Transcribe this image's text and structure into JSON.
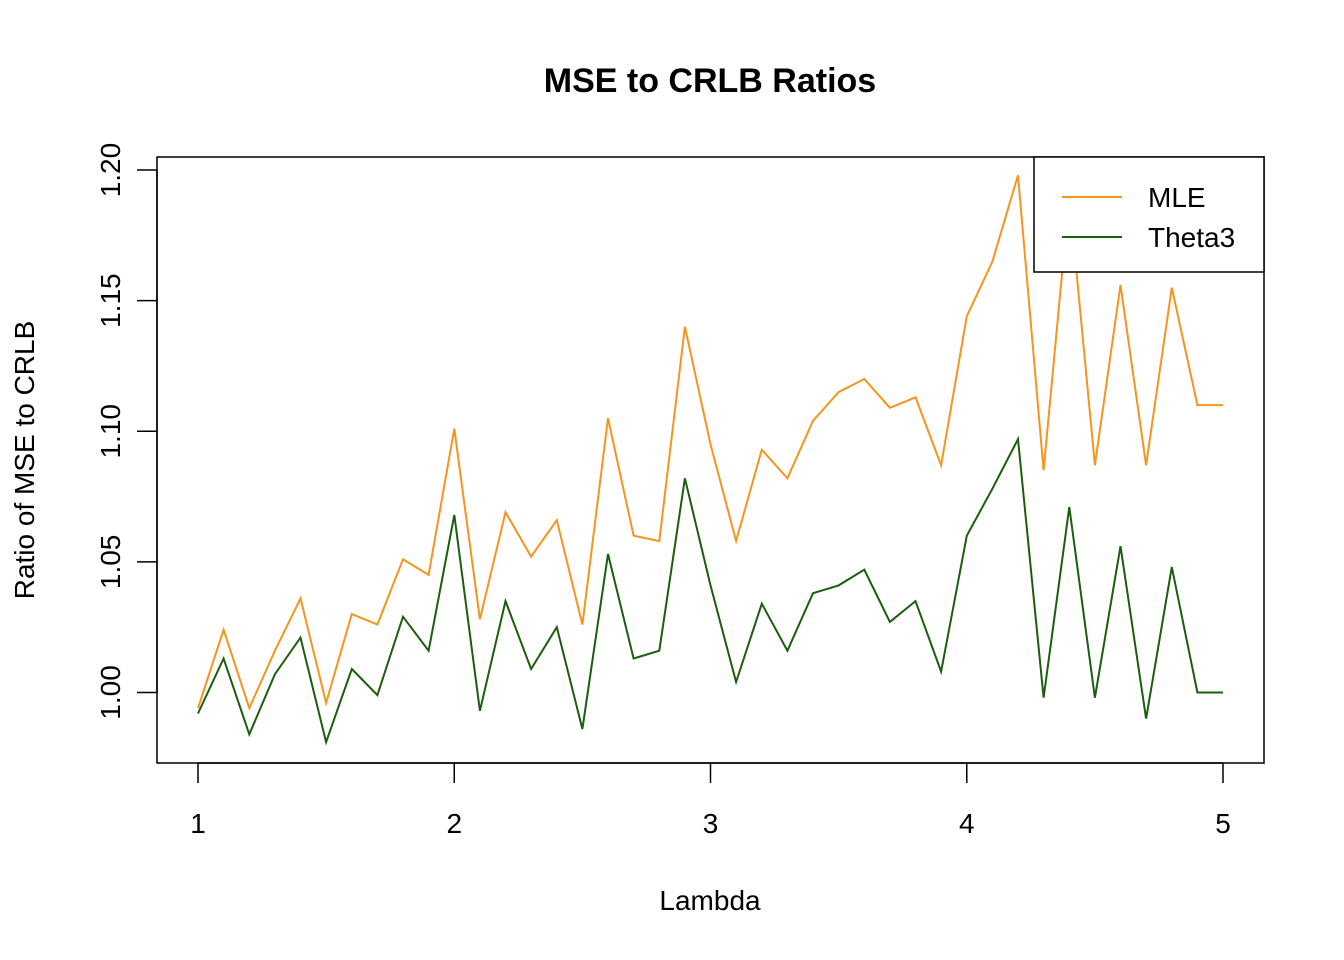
{
  "chart_data": {
    "type": "line",
    "title": "MSE to CRLB Ratios",
    "xlabel": "Lambda",
    "ylabel": "Ratio of MSE to CRLB",
    "xlim": [
      0.84,
      5.16
    ],
    "ylim": [
      0.973,
      1.205
    ],
    "x_ticks": [
      1,
      2,
      3,
      4,
      5
    ],
    "x_tick_labels": [
      "1",
      "2",
      "3",
      "4",
      "5"
    ],
    "y_ticks": [
      1.0,
      1.05,
      1.1,
      1.15,
      1.2
    ],
    "y_tick_labels": [
      "1.00",
      "1.05",
      "1.10",
      "1.15",
      "1.20"
    ],
    "grid": false,
    "legend_position": "top-right",
    "x": [
      1.0,
      1.1,
      1.2,
      1.3,
      1.4,
      1.5,
      1.6,
      1.7,
      1.8,
      1.9,
      2.0,
      2.1,
      2.2,
      2.3,
      2.4,
      2.5,
      2.6,
      2.7,
      2.8,
      2.9,
      3.0,
      3.1,
      3.2,
      3.3,
      3.4,
      3.5,
      3.6,
      3.7,
      3.8,
      3.9,
      4.0,
      4.1,
      4.2,
      4.3,
      4.4,
      4.5,
      4.6,
      4.7,
      4.8,
      4.9,
      5.0
    ],
    "series": [
      {
        "name": "MLE",
        "color": "#f7941d",
        "values": [
          0.994,
          1.024,
          0.994,
          1.016,
          1.036,
          0.996,
          1.03,
          1.026,
          1.051,
          1.045,
          1.101,
          1.028,
          1.069,
          1.052,
          1.066,
          1.026,
          1.105,
          1.06,
          1.058,
          1.14,
          1.095,
          1.058,
          1.093,
          1.082,
          1.104,
          1.115,
          1.12,
          1.109,
          1.113,
          1.087,
          1.144,
          1.165,
          1.198,
          1.085,
          1.19,
          1.087,
          1.156,
          1.087,
          1.155,
          1.11,
          1.11
        ]
      },
      {
        "name": "Theta3",
        "color": "#1b5e0f",
        "values": [
          0.992,
          1.013,
          0.984,
          1.007,
          1.021,
          0.981,
          1.009,
          0.999,
          1.029,
          1.016,
          1.068,
          0.993,
          1.035,
          1.009,
          1.025,
          0.986,
          1.053,
          1.013,
          1.016,
          1.082,
          1.041,
          1.004,
          1.034,
          1.016,
          1.038,
          1.041,
          1.047,
          1.027,
          1.035,
          1.008,
          1.06,
          1.078,
          1.097,
          0.998,
          1.071,
          0.998,
          1.056,
          0.99,
          1.048,
          1.0,
          1.0
        ]
      }
    ]
  }
}
